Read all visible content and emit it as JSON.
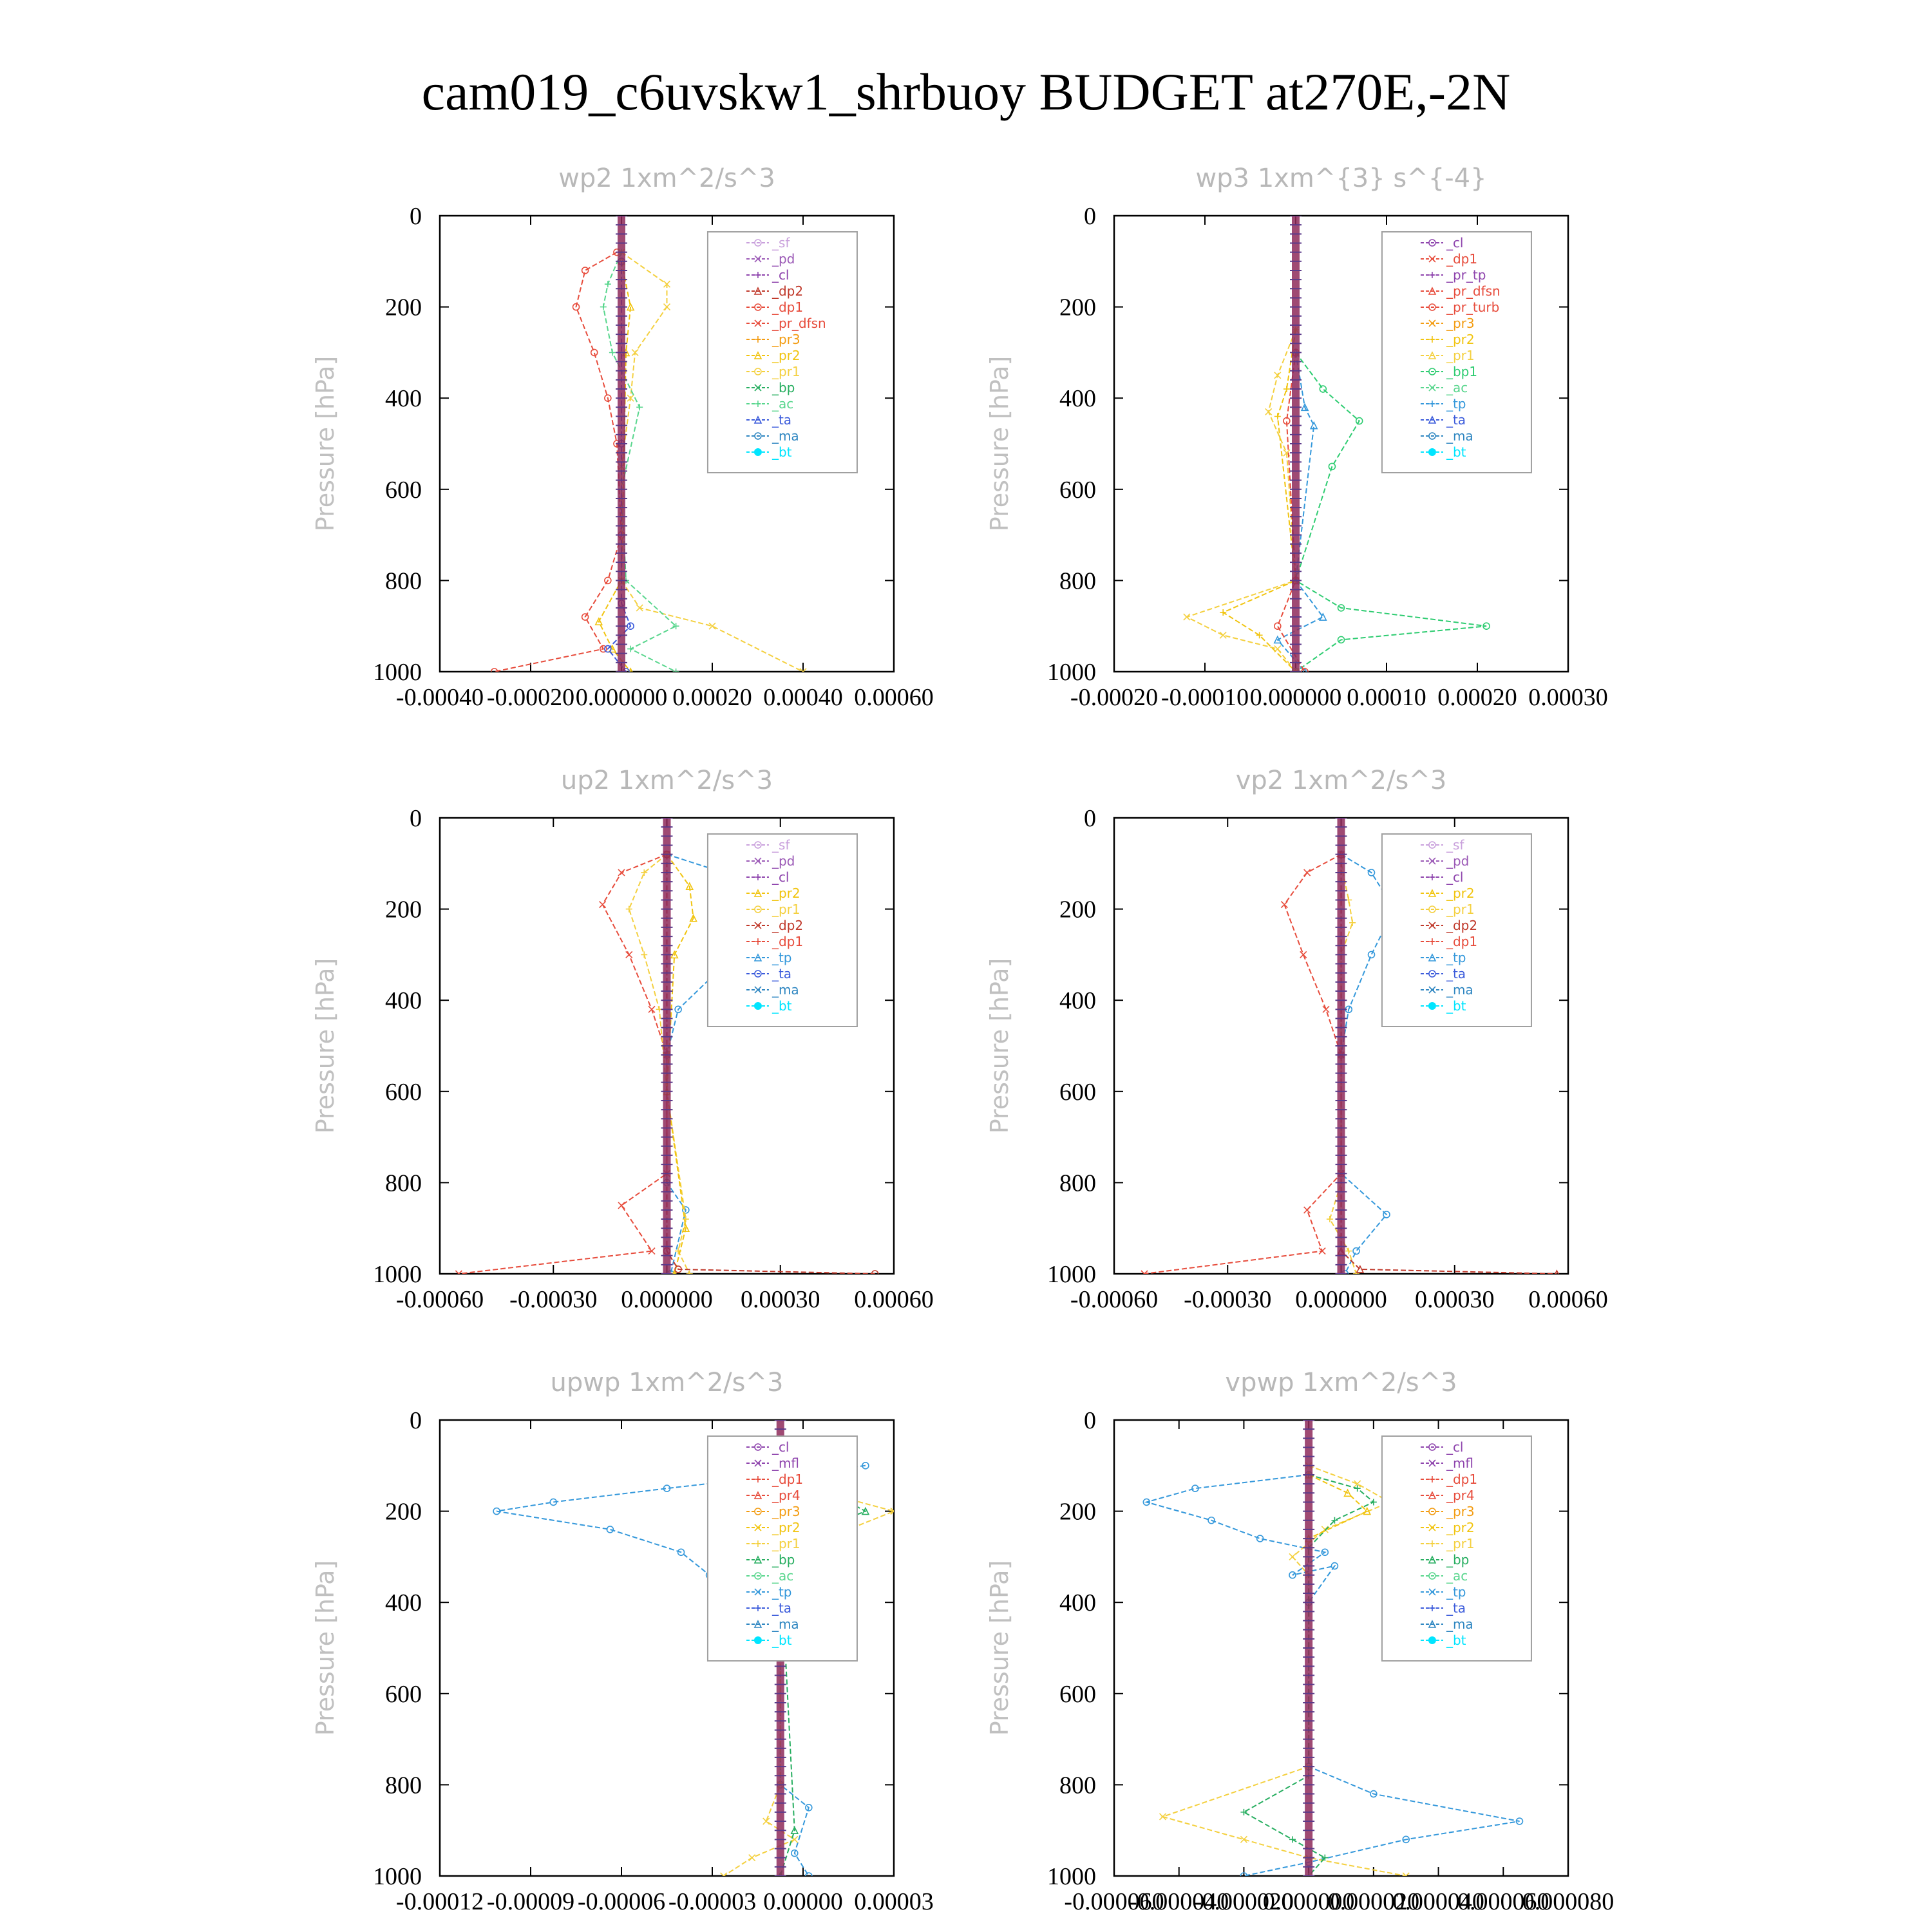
{
  "title": "cam019_c6uvskw1_shrbuoy  BUDGET at270E,-2N",
  "colors": {
    "frame": "#000000",
    "grey_text": "#b8b8b8",
    "series": {
      "_sf": "#c9a0dc",
      "_pd": "#9b59b6",
      "_cl": "#8e44ad",
      "_mfl": "#8e44ad",
      "_dp2": "#c0392b",
      "_dp1": "#e74c3c",
      "_pr_dfsn": "#e74c3c",
      "_pr_tp": "#8e44ad",
      "_pr_turb": "#e74c3c",
      "_pr4": "#e74c3c",
      "_pr3": "#f39c12",
      "_pr2": "#f1c40f",
      "_pr1": "#f4d03f",
      "_bp1": "#2ecc71",
      "_bp": "#27ae60",
      "_ac": "#58d68d",
      "_tp": "#3498db",
      "_ta": "#3b5bdb",
      "_ma": "#2e86c1",
      "_bt": "#00e5ff"
    }
  },
  "chart_data": [
    {
      "type": "line",
      "title": "wp2   1xm^2/s^3",
      "ylabel": "Pressure  [hPa]",
      "ylim": [
        1000,
        0
      ],
      "yticks": [
        "0",
        "200",
        "400",
        "600",
        "800",
        "1000"
      ],
      "xlim": [
        -0.0004,
        0.0006
      ],
      "xticks": [
        "-0.00040",
        "-0.00020",
        "0.000000",
        "0.00020",
        "0.00040",
        "0.00060"
      ],
      "legend": [
        "_sf",
        "_pd",
        "_cl",
        "_dp2",
        "_dp1",
        "_pr_dfsn",
        "_pr3",
        "_pr2",
        "_pr1",
        "_bp",
        "_ac",
        "_ta",
        "_ma",
        "_bt"
      ],
      "series": [
        {
          "name": "_dp1",
          "x": [
            -1e-05,
            -8e-05,
            -0.0001,
            -6e-05,
            -3e-05,
            -1e-05,
            0,
            -3e-05,
            -8e-05,
            -4e-05,
            -0.00028
          ],
          "y": [
            80,
            120,
            200,
            300,
            400,
            500,
            700,
            800,
            880,
            950,
            1000
          ]
        },
        {
          "name": "_pr1",
          "x": [
            0,
            0.0001,
            0.0001,
            3e-05,
            2e-05,
            0,
            0,
            4e-05,
            0.0002,
            0.0004
          ],
          "y": [
            80,
            150,
            200,
            300,
            400,
            550,
            800,
            860,
            900,
            1000
          ]
        },
        {
          "name": "_ac",
          "x": [
            0,
            -3e-05,
            -4e-05,
            -2e-05,
            4e-05,
            0,
            1e-05,
            0.00012,
            2e-05,
            0.00012
          ],
          "y": [
            80,
            150,
            200,
            300,
            420,
            600,
            800,
            900,
            950,
            1000
          ]
        },
        {
          "name": "_pr2",
          "x": [
            0,
            2e-05,
            1e-05,
            0,
            -5e-05,
            -2e-05,
            2e-05
          ],
          "y": [
            100,
            200,
            300,
            800,
            890,
            950,
            1000
          ]
        },
        {
          "name": "_ta",
          "x": [
            0,
            0,
            0,
            2e-05,
            -3e-05,
            1e-05
          ],
          "y": [
            100,
            500,
            850,
            900,
            950,
            1000
          ]
        }
      ]
    },
    {
      "type": "line",
      "title": "wp3   1xm^{3} s^{-4}",
      "ylabel": "Pressure  [hPa]",
      "ylim": [
        1000,
        0
      ],
      "yticks": [
        "0",
        "200",
        "400",
        "600",
        "800",
        "1000"
      ],
      "xlim": [
        -0.0002,
        0.0003
      ],
      "xticks": [
        "-0.00020",
        "-0.00010",
        "0.000000",
        "0.00010",
        "0.00020",
        "0.00030"
      ],
      "legend": [
        "_cl",
        "_dp1",
        "_pr_tp",
        "_pr_dfsn",
        "_pr_turb",
        "_pr3",
        "_pr2",
        "_pr1",
        "_bp1",
        "_ac",
        "_tp",
        "_ta",
        "_ma",
        "_bt"
      ],
      "series": [
        {
          "name": "_bp1",
          "x": [
            0,
            3e-05,
            7e-05,
            4e-05,
            0,
            5e-05,
            0.00021,
            5e-05,
            0
          ],
          "y": [
            300,
            380,
            450,
            550,
            800,
            860,
            900,
            930,
            1000
          ]
        },
        {
          "name": "_pr1",
          "x": [
            0,
            -2e-05,
            -3e-05,
            -1e-05,
            0,
            -0.00012,
            -8e-05,
            -2e-05,
            0
          ],
          "y": [
            250,
            350,
            430,
            520,
            800,
            880,
            920,
            950,
            1000
          ]
        },
        {
          "name": "_pr2",
          "x": [
            0,
            -1e-05,
            -2e-05,
            0,
            -8e-05,
            -4e-05,
            0
          ],
          "y": [
            250,
            380,
            440,
            800,
            870,
            920,
            1000
          ]
        },
        {
          "name": "_tp",
          "x": [
            0,
            1e-05,
            2e-05,
            0,
            3e-05,
            -2e-05,
            1e-05
          ],
          "y": [
            300,
            420,
            460,
            800,
            880,
            930,
            1000
          ]
        },
        {
          "name": "_dp1",
          "x": [
            0,
            -1e-05,
            0,
            -2e-05,
            1e-05
          ],
          "y": [
            300,
            450,
            800,
            900,
            1000
          ]
        }
      ]
    },
    {
      "type": "line",
      "title": "up2   1xm^2/s^3",
      "ylabel": "Pressure  [hPa]",
      "ylim": [
        1000,
        0
      ],
      "yticks": [
        "0",
        "200",
        "400",
        "600",
        "800",
        "1000"
      ],
      "xlim": [
        -0.0006,
        0.0006
      ],
      "xticks": [
        "-0.00060",
        "-0.00030",
        "0.000000",
        "0.00030",
        "0.00060"
      ],
      "legend": [
        "_sf",
        "_pd",
        "_cl",
        "_pr2",
        "_pr1",
        "_dp2",
        "_dp1",
        "_tp",
        "_ta",
        "_ma",
        "_bt"
      ],
      "series": [
        {
          "name": "_tp",
          "x": [
            0,
            0.00015,
            0.00028,
            0.00018,
            3e-05,
            0,
            0,
            5e-05,
            1e-05
          ],
          "y": [
            80,
            120,
            200,
            300,
            420,
            520,
            800,
            860,
            1000
          ]
        },
        {
          "name": "_dp1",
          "x": [
            0,
            -0.00012,
            -0.00017,
            -0.0001,
            -4e-05,
            0,
            0,
            -0.00012,
            -4e-05,
            -0.00055
          ],
          "y": [
            80,
            120,
            190,
            300,
            420,
            520,
            780,
            850,
            950,
            1000
          ]
        },
        {
          "name": "_pr1",
          "x": [
            0,
            -6e-05,
            -0.0001,
            -6e-05,
            -2e-05,
            0,
            5e-05,
            3e-05,
            6e-05
          ],
          "y": [
            80,
            120,
            200,
            300,
            420,
            600,
            880,
            950,
            1000
          ]
        },
        {
          "name": "_pr2",
          "x": [
            0,
            6e-05,
            7e-05,
            2e-05,
            0,
            5e-05,
            2e-05
          ],
          "y": [
            80,
            150,
            220,
            300,
            600,
            900,
            1000
          ]
        },
        {
          "name": "_dp2",
          "x": [
            0,
            0,
            3e-05,
            0.00055
          ],
          "y": [
            80,
            950,
            990,
            1000
          ]
        }
      ]
    },
    {
      "type": "line",
      "title": "vp2   1xm^2/s^3",
      "ylabel": "Pressure  [hPa]",
      "ylim": [
        1000,
        0
      ],
      "yticks": [
        "0",
        "200",
        "400",
        "600",
        "800",
        "1000"
      ],
      "xlim": [
        -0.0006,
        0.0006
      ],
      "xticks": [
        "-0.00060",
        "-0.00030",
        "0.000000",
        "0.00030",
        "0.00060"
      ],
      "legend": [
        "_sf",
        "_pd",
        "_cl",
        "_pr2",
        "_pr1",
        "_dp2",
        "_dp1",
        "_tp",
        "_ta",
        "_ma",
        "_bt"
      ],
      "series": [
        {
          "name": "_tp",
          "x": [
            0,
            8e-05,
            0.00014,
            8e-05,
            2e-05,
            0,
            0,
            0.00012,
            4e-05,
            1e-05
          ],
          "y": [
            80,
            120,
            200,
            300,
            420,
            520,
            780,
            870,
            950,
            1000
          ]
        },
        {
          "name": "_dp1",
          "x": [
            0,
            -9e-05,
            -0.00015,
            -0.0001,
            -4e-05,
            0,
            0,
            -9e-05,
            -5e-05,
            -0.00052
          ],
          "y": [
            80,
            120,
            190,
            300,
            420,
            520,
            780,
            860,
            950,
            1000
          ]
        },
        {
          "name": "_pr1",
          "x": [
            0,
            2e-05,
            3e-05,
            0,
            0,
            -3e-05,
            2e-05,
            4e-05
          ],
          "y": [
            100,
            180,
            230,
            300,
            800,
            880,
            950,
            1000
          ]
        },
        {
          "name": "_dp2",
          "x": [
            0,
            0,
            5e-05,
            0.00057
          ],
          "y": [
            80,
            950,
            990,
            1000
          ]
        }
      ]
    },
    {
      "type": "line",
      "title": "upwp   1xm^2/s^3",
      "ylabel": "Pressure  [hPa]",
      "ylim": [
        1000,
        0
      ],
      "yticks": [
        "0",
        "200",
        "400",
        "600",
        "800",
        "1000"
      ],
      "xlim": [
        -0.00012,
        4e-05
      ],
      "xticks": [
        "-0.00012",
        "-0.00009",
        "-0.00006",
        "-0.00003",
        "0.00000",
        "0.00003"
      ],
      "legend": [
        "_cl",
        "_mfl",
        "_dp1",
        "_pr4",
        "_pr3",
        "_pr2",
        "_pr1",
        "_bp",
        "_ac",
        "_tp",
        "_ta",
        "_ma",
        "_bt"
      ],
      "series": [
        {
          "name": "_tp",
          "x": [
            3e-05,
            -4e-05,
            -8e-05,
            -0.0001,
            -6e-05,
            -3.5e-05,
            -2.5e-05,
            -1.5e-05,
            -1e-05,
            0,
            0,
            1e-05,
            5e-06,
            1e-05
          ],
          "y": [
            100,
            150,
            180,
            200,
            240,
            290,
            340,
            420,
            470,
            500,
            800,
            850,
            950,
            1000
          ]
        },
        {
          "name": "_pr1",
          "x": [
            -2e-05,
            1e-05,
            4e-05,
            2e-05,
            0,
            0,
            -5e-06,
            5e-06,
            -1e-05,
            -2e-05
          ],
          "y": [
            100,
            150,
            200,
            250,
            350,
            800,
            880,
            920,
            960,
            1000
          ]
        },
        {
          "name": "_pr2",
          "x": [
            -1e-05,
            1e-05,
            2.5e-05,
            1.5e-05,
            0
          ],
          "y": [
            120,
            160,
            200,
            240,
            300
          ]
        },
        {
          "name": "_bp",
          "x": [
            0,
            1.5e-05,
            3e-05,
            1e-05,
            0,
            5e-06,
            0
          ],
          "y": [
            100,
            150,
            200,
            250,
            300,
            900,
            1000
          ]
        }
      ]
    },
    {
      "type": "line",
      "title": "vpwp   1xm^2/s^3",
      "ylabel": "Pressure  [hPa]",
      "ylim": [
        1000,
        0
      ],
      "yticks": [
        "0",
        "200",
        "400",
        "600",
        "800",
        "1000"
      ],
      "xlim": [
        -6e-05,
        8e-05
      ],
      "xticks": [
        "-0.000060",
        "-0.000040",
        "-0.000020",
        "0.000000",
        "0.000020",
        "0.000040",
        "0.000060",
        "0.000080"
      ],
      "legend": [
        "_cl",
        "_mfl",
        "_dp1",
        "_pr4",
        "_pr3",
        "_pr2",
        "_pr1",
        "_bp",
        "_ac",
        "_tp",
        "_ta",
        "_ma",
        "_bt"
      ],
      "series": [
        {
          "name": "_tp",
          "x": [
            0,
            -3.5e-05,
            -5e-05,
            -3e-05,
            -1.5e-05,
            5e-06,
            -5e-06,
            8e-06,
            0,
            0,
            2e-05,
            6.5e-05,
            3e-05,
            0,
            -2e-05
          ],
          "y": [
            120,
            150,
            180,
            220,
            260,
            290,
            340,
            320,
            400,
            760,
            820,
            880,
            920,
            970,
            1000
          ]
        },
        {
          "name": "_pr1",
          "x": [
            0,
            1.5e-05,
            2.5e-05,
            5e-06,
            -5e-06,
            0,
            0,
            -4.5e-05,
            -2e-05,
            0,
            3e-05
          ],
          "y": [
            100,
            140,
            180,
            240,
            300,
            340,
            760,
            870,
            920,
            960,
            1000
          ]
        },
        {
          "name": "_bp",
          "x": [
            0,
            1.5e-05,
            2e-05,
            8e-06,
            0,
            0,
            -2e-05,
            -5e-06,
            5e-06,
            0
          ],
          "y": [
            120,
            150,
            180,
            220,
            280,
            780,
            860,
            920,
            960,
            1000
          ]
        },
        {
          "name": "_pr2",
          "x": [
            0,
            1.2e-05,
            1.8e-05,
            0
          ],
          "y": [
            120,
            160,
            200,
            260
          ]
        }
      ]
    }
  ]
}
